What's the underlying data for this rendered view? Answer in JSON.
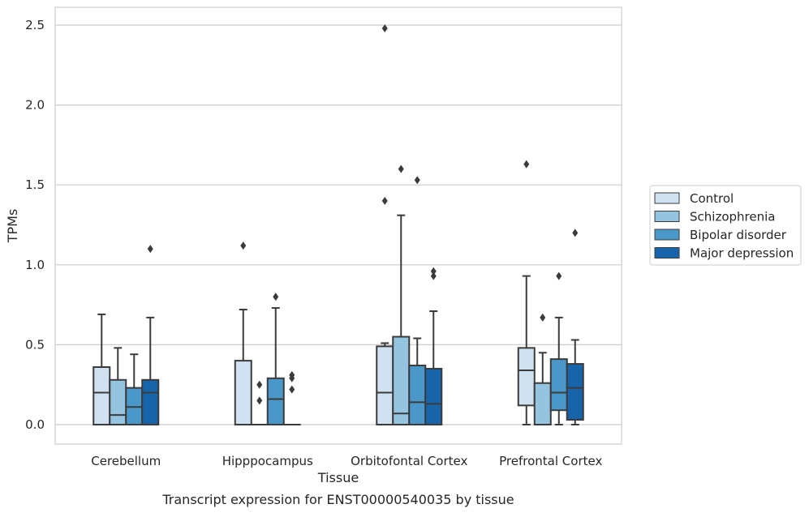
{
  "caption": "Transcript expression for ENST00000540035 by tissue",
  "chart_data": {
    "type": "box",
    "xlabel": "Tissue",
    "ylabel": "TPMs",
    "ylim": [
      -0.12,
      2.61
    ],
    "yticks": [
      0.0,
      0.5,
      1.0,
      1.5,
      2.0,
      2.5
    ],
    "ytick_labels": [
      "0.0",
      "0.5",
      "1.0",
      "1.5",
      "2.0",
      "2.5"
    ],
    "grid": "horizontal",
    "legend_placement": "right-outside",
    "categories": [
      "Cerebellum",
      "Hipppocampus",
      "Orbitofontal Cortex",
      "Prefrontal Cortex"
    ],
    "series": [
      {
        "name": "Control",
        "color": "#d0e1f2",
        "boxes": [
          {
            "whislo": 0.0,
            "q1": 0.0,
            "med": 0.2,
            "q3": 0.36,
            "whishi": 0.69,
            "fliers": []
          },
          {
            "whislo": 0.0,
            "q1": 0.0,
            "med": 0.0,
            "q3": 0.4,
            "whishi": 0.72,
            "fliers": [
              1.12
            ]
          },
          {
            "whislo": 0.0,
            "q1": 0.0,
            "med": 0.2,
            "q3": 0.49,
            "whishi": 0.51,
            "fliers": [
              1.4,
              2.48
            ]
          },
          {
            "whislo": 0.0,
            "q1": 0.12,
            "med": 0.34,
            "q3": 0.48,
            "whishi": 0.93,
            "fliers": [
              1.63
            ]
          }
        ]
      },
      {
        "name": "Schizophrenia",
        "color": "#94c4df",
        "boxes": [
          {
            "whislo": 0.0,
            "q1": 0.0,
            "med": 0.06,
            "q3": 0.28,
            "whishi": 0.48,
            "fliers": []
          },
          {
            "whislo": 0.0,
            "q1": 0.0,
            "med": 0.0,
            "q3": 0.0,
            "whishi": 0.0,
            "fliers": [
              0.15,
              0.25
            ]
          },
          {
            "whislo": 0.0,
            "q1": 0.0,
            "med": 0.07,
            "q3": 0.55,
            "whishi": 1.31,
            "fliers": [
              1.6
            ]
          },
          {
            "whislo": 0.0,
            "q1": 0.0,
            "med": 0.0,
            "q3": 0.26,
            "whishi": 0.45,
            "fliers": [
              0.67
            ]
          }
        ]
      },
      {
        "name": "Bipolar disorder",
        "color": "#4a98c9",
        "boxes": [
          {
            "whislo": 0.0,
            "q1": 0.0,
            "med": 0.11,
            "q3": 0.23,
            "whishi": 0.44,
            "fliers": []
          },
          {
            "whislo": 0.0,
            "q1": 0.0,
            "med": 0.16,
            "q3": 0.29,
            "whishi": 0.73,
            "fliers": [
              0.8
            ]
          },
          {
            "whislo": 0.0,
            "q1": 0.0,
            "med": 0.14,
            "q3": 0.37,
            "whishi": 0.54,
            "fliers": [
              1.53
            ]
          },
          {
            "whislo": 0.0,
            "q1": 0.09,
            "med": 0.2,
            "q3": 0.41,
            "whishi": 0.67,
            "fliers": [
              0.93
            ]
          }
        ]
      },
      {
        "name": "Major depression",
        "color": "#1764ab",
        "boxes": [
          {
            "whislo": 0.0,
            "q1": 0.0,
            "med": 0.2,
            "q3": 0.28,
            "whishi": 0.67,
            "fliers": [
              1.1
            ]
          },
          {
            "whislo": 0.0,
            "q1": 0.0,
            "med": 0.0,
            "q3": 0.0,
            "whishi": 0.0,
            "fliers": [
              0.22,
              0.29,
              0.31
            ]
          },
          {
            "whislo": 0.0,
            "q1": 0.0,
            "med": 0.13,
            "q3": 0.35,
            "whishi": 0.71,
            "fliers": [
              0.93,
              0.96
            ]
          },
          {
            "whislo": 0.0,
            "q1": 0.03,
            "med": 0.23,
            "q3": 0.38,
            "whishi": 0.53,
            "fliers": [
              1.2
            ]
          }
        ]
      }
    ]
  }
}
